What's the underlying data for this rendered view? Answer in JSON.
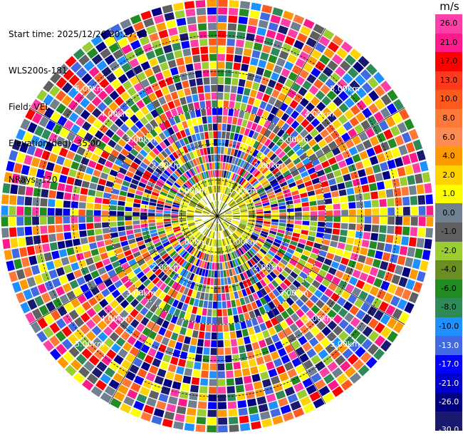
{
  "info": {
    "start_time": "Start time: 2025/12/26 20:27:43",
    "site": "WLS200s-181",
    "field": "Field: VEL",
    "elevation": "Elevation(deg): 35.00",
    "nrays": "NRays: 120"
  },
  "colorbar": {
    "unit": "m/s",
    "colors": [
      "#ff3fa8",
      "#ff1a8c",
      "#ff0000",
      "#ff3a1c",
      "#ff5a1e",
      "#ff7838",
      "#ff8c55",
      "#ff9900",
      "#ffd200",
      "#ffff00",
      "#708090",
      "#606060",
      "#9acd32",
      "#6b8e23",
      "#228b22",
      "#2e8b57",
      "#1e90ff",
      "#4169e1",
      "#0000ff",
      "#0000cd",
      "#000080",
      "#191970"
    ],
    "ticks": [
      "26.0",
      "21.0",
      "17.0",
      "13.0",
      "10.0",
      "8.0",
      "6.0",
      "4.0",
      "2.0",
      "1.0",
      "0.0",
      "-1.0",
      "-2.0",
      "-4.0",
      "-6.0",
      "-8.0",
      "-10.0",
      "-13.0",
      "-17.0",
      "-21.0",
      "-26.0",
      "-30.0"
    ]
  },
  "chart_data": {
    "type": "heatmap",
    "projection": "polar-ppi",
    "field": "VEL",
    "units": "m/s",
    "nrays": 120,
    "range_km": [
      0,
      6
    ],
    "value_range": [
      -30.0,
      26.0
    ],
    "range_ring_labels": [
      "1.00km",
      "2.00km",
      "3.00km",
      "4.00km",
      "5.00km"
    ],
    "range_rings_km": [
      1,
      2,
      3,
      4,
      5
    ],
    "azimuth_spokes_deg": [
      0,
      30,
      60,
      90,
      120,
      150,
      180,
      210,
      240,
      270,
      300,
      330
    ]
  },
  "palette": {
    "near_field": [
      "#ffff00",
      "#ffd200",
      "#9acd32",
      "#6b8e23",
      "#ffff00",
      "#808000"
    ],
    "far_field": [
      "#ff1a8c",
      "#ff3fa8",
      "#0000ff",
      "#000080",
      "#ffff00",
      "#ff0000",
      "#ff5a1e",
      "#228b22",
      "#1e90ff",
      "#4169e1",
      "#ffd200",
      "#ff9900",
      "#191970",
      "#9acd32",
      "#2e8b57",
      "#606060",
      "#708090",
      "#ff7838"
    ]
  }
}
